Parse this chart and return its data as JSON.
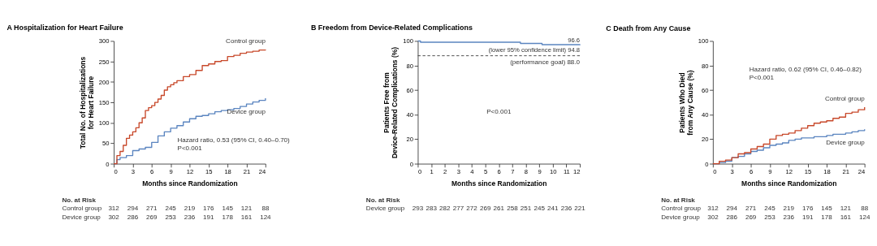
{
  "chart_data": [
    {
      "type": "step",
      "title": "A Hospitalization for Heart Failure",
      "xlabel": "Months since Randomization",
      "ylabel": "Total No. of Hospitalizations for Heart Failure",
      "xlim": [
        0,
        24
      ],
      "xticks": [
        0,
        3,
        6,
        9,
        12,
        15,
        18,
        21,
        24
      ],
      "ylim": [
        0,
        300
      ],
      "yticks": [
        0,
        50,
        100,
        150,
        200,
        250,
        300
      ],
      "series": [
        {
          "name": "Control group",
          "color": "#c8492b",
          "x": [
            0,
            0.5,
            1,
            1.5,
            2,
            2.5,
            3,
            3.5,
            4,
            4.5,
            5,
            5.5,
            6,
            6.5,
            7,
            7.5,
            8,
            8.5,
            9,
            9.5,
            10,
            11,
            12,
            13,
            14,
            15,
            16,
            17,
            18,
            19,
            20,
            21,
            22,
            23,
            24
          ],
          "values": [
            0,
            20,
            30,
            45,
            62,
            70,
            78,
            88,
            100,
            112,
            130,
            137,
            142,
            150,
            158,
            167,
            180,
            188,
            193,
            198,
            203,
            213,
            218,
            228,
            240,
            244,
            250,
            252,
            262,
            265,
            270,
            273,
            275,
            278,
            279
          ]
        },
        {
          "name": "Device group",
          "color": "#5b85c0",
          "x": [
            0,
            0.5,
            1,
            2,
            3,
            4,
            5,
            6,
            7,
            8,
            9,
            10,
            11,
            12,
            13,
            14,
            15,
            16,
            17,
            18,
            19,
            20,
            21,
            22,
            23,
            24
          ],
          "values": [
            0,
            10,
            15,
            20,
            32,
            36,
            40,
            52,
            68,
            78,
            87,
            93,
            102,
            110,
            116,
            118,
            122,
            127,
            130,
            132,
            135,
            140,
            146,
            151,
            155,
            160
          ]
        }
      ],
      "annotations": [
        "Hazard ratio, 0.53 (95% CI, 0.40–0.70)",
        "P<0.001",
        "No. at Risk",
        "Control group 312 294 271 245 219 176 145 121 88",
        "Device group 302 286 269 253 236 191 178 161 124"
      ]
    },
    {
      "type": "step",
      "title": "B Freedom from Device-Related Complications",
      "xlabel": "Months since Randomization",
      "ylabel": "Patients Free from Device-Related Complications (%)",
      "xlim": [
        0,
        12
      ],
      "xticks": [
        0,
        1,
        2,
        3,
        4,
        5,
        6,
        7,
        8,
        9,
        10,
        11,
        12
      ],
      "ylim": [
        0,
        100
      ],
      "yticks": [
        0,
        20,
        40,
        60,
        80,
        100
      ],
      "series": [
        {
          "color": "#5b85c0",
          "x": [
            0,
            0.2,
            7.6,
            9.2,
            12
          ],
          "values": [
            100,
            99,
            98,
            97,
            96.6
          ]
        }
      ],
      "ref_lines": [
        {
          "axis": "y",
          "value": 88.0,
          "label": "(performance goal) 88.0",
          "line_style": "dashed"
        }
      ],
      "annotations": [
        {
          "text": "96.6",
          "x": 12,
          "y": 96.6
        },
        {
          "text": "(lower 95% confidence limit) 94.8",
          "x": 12,
          "y": 94.8
        },
        "P<0.001",
        "No. at Risk",
        "Device group 293 283 282 277 272 269 261 258 251 245 241 236 221"
      ]
    },
    {
      "type": "step",
      "title": "C Death from Any Cause",
      "xlabel": "Months since Randomization",
      "ylabel": "Patients Who Died from Any Cause (%)",
      "xlim": [
        0,
        24
      ],
      "xticks": [
        0,
        3,
        6,
        9,
        12,
        15,
        18,
        21,
        24
      ],
      "ylim": [
        0,
        100
      ],
      "yticks": [
        0,
        20,
        40,
        60,
        80,
        100
      ],
      "series": [
        {
          "name": "Control group",
          "color": "#c8492b",
          "x": [
            0,
            1,
            2,
            3,
            4,
            5,
            6,
            7,
            8,
            9,
            10,
            11,
            12,
            13,
            14,
            15,
            16,
            17,
            18,
            19,
            20,
            21,
            22,
            23,
            24
          ],
          "values": [
            0,
            2,
            3,
            5,
            8,
            9,
            12,
            14,
            16,
            20,
            23,
            24,
            25,
            27,
            29,
            31,
            33,
            34,
            35,
            37,
            38,
            41,
            42,
            44,
            46
          ]
        },
        {
          "name": "Device group",
          "color": "#5b85c0",
          "x": [
            0,
            1,
            2,
            3,
            4,
            5,
            6,
            7,
            8,
            9,
            10,
            11,
            12,
            13,
            14,
            15,
            16,
            17,
            18,
            19,
            20,
            21,
            22,
            23,
            24
          ],
          "values": [
            0,
            1,
            2,
            5,
            6,
            8,
            10,
            11,
            13,
            15,
            16,
            17,
            19,
            20,
            21,
            21,
            22,
            22,
            23,
            24,
            24,
            25,
            26,
            27,
            28
          ]
        }
      ],
      "annotations": [
        "Hazard ratio, 0.62 (95% CI, 0.46–0.82)",
        "P<0.001",
        "No. at Risk",
        "Control group 312 294 271 245 219 176 145 121 88",
        "Device group 302 286 269 253 236 191 178 161 124"
      ]
    }
  ]
}
